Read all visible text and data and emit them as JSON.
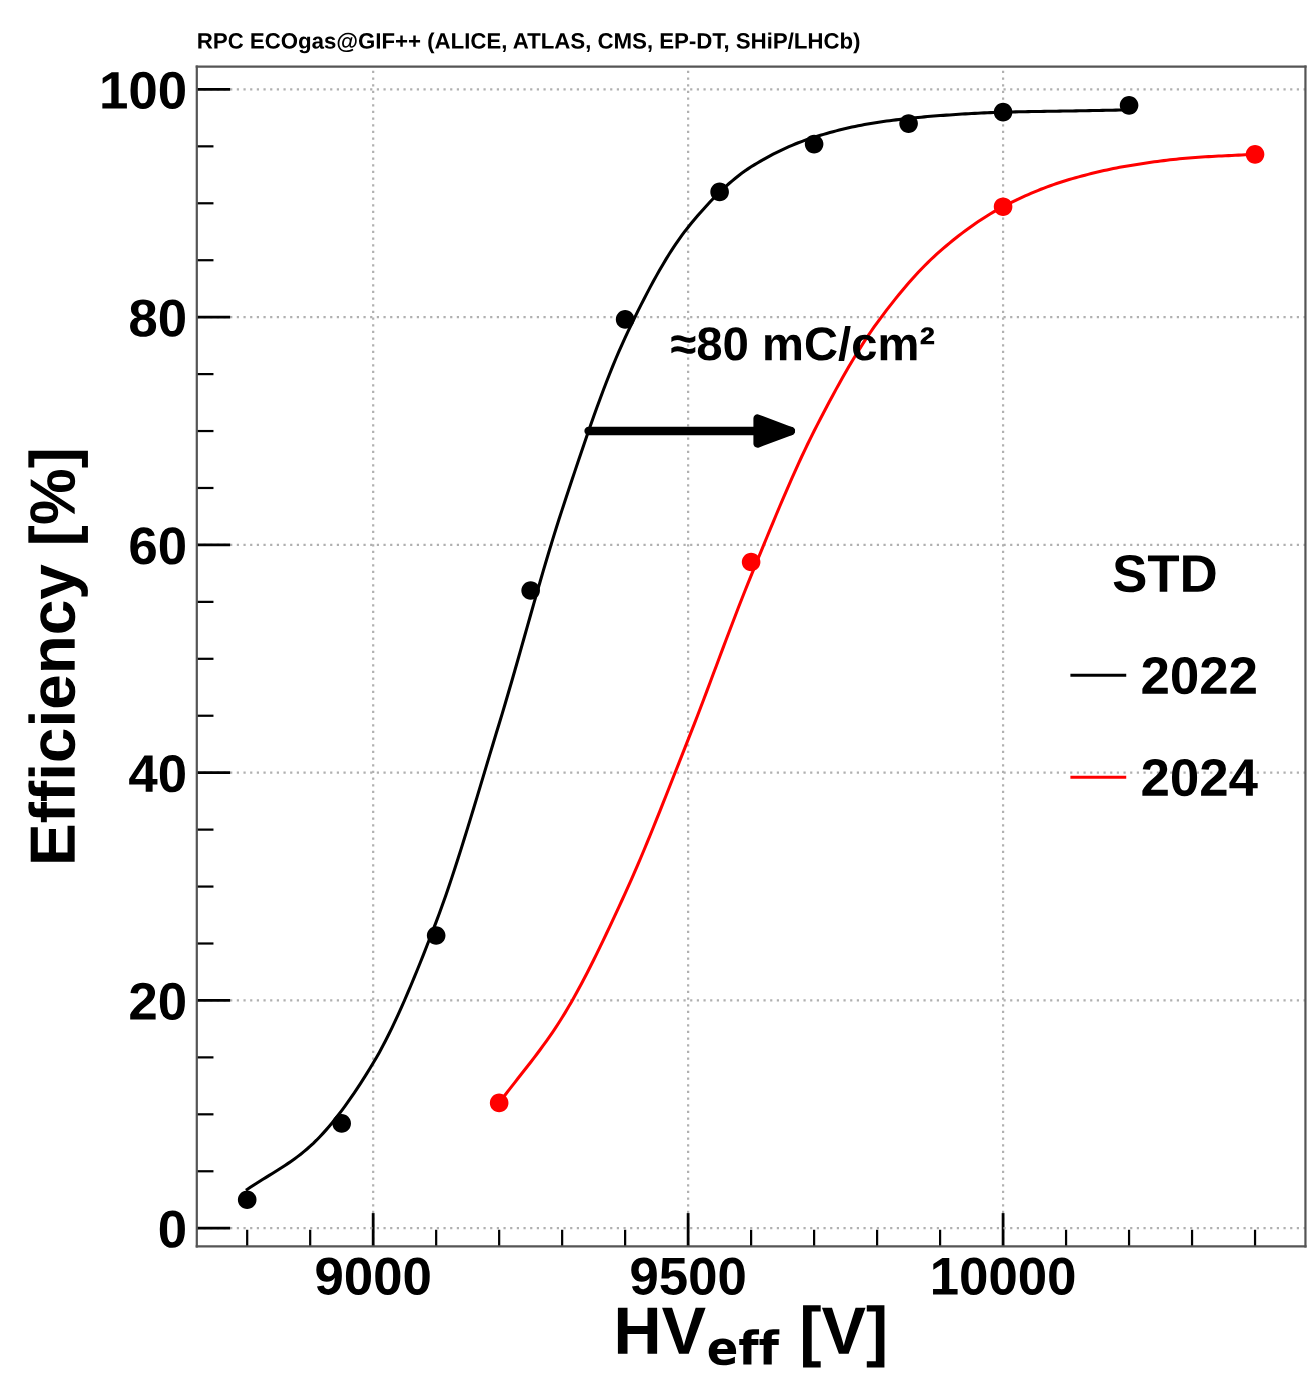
{
  "chart_data": {
    "type": "scatter",
    "title": "RPC ECOgas@GIF++ (ALICE, ATLAS, CMS, EP-DT, SHiP/LHCb)",
    "xlabel": "HV$_{eff}$ [V]",
    "ylabel": "Efficiency [%]",
    "legend_title": "STD",
    "legend": "right",
    "grid": true,
    "marker": "circle",
    "xlim": [
      8720,
      10480
    ],
    "ylim": [
      -1.6,
      102
    ],
    "xticks": [
      {
        "value": 8800,
        "label": null
      },
      {
        "value": 8900,
        "label": null
      },
      9000,
      {
        "value": 9100,
        "label": null
      },
      {
        "value": 9200,
        "label": null
      },
      {
        "value": 9300,
        "label": null
      },
      {
        "value": 9400,
        "label": null
      },
      9500,
      {
        "value": 9600,
        "label": null
      },
      {
        "value": 9700,
        "label": null
      },
      {
        "value": 9800,
        "label": null
      },
      {
        "value": 9900,
        "label": null
      },
      10000,
      {
        "value": 10100,
        "label": null
      },
      {
        "value": 10200,
        "label": null
      },
      {
        "value": 10300,
        "label": null
      },
      {
        "value": 10400,
        "label": null
      }
    ],
    "yticks": [
      0,
      {
        "value": 5,
        "label": null
      },
      {
        "value": 10,
        "label": null
      },
      {
        "value": 15,
        "label": null
      },
      20,
      {
        "value": 25,
        "label": null
      },
      {
        "value": 30,
        "label": null
      },
      {
        "value": 35,
        "label": null
      },
      40,
      {
        "value": 45,
        "label": null
      },
      {
        "value": 50,
        "label": null
      },
      {
        "value": 55,
        "label": null
      },
      60,
      {
        "value": 65,
        "label": null
      },
      {
        "value": 70,
        "label": null
      },
      {
        "value": 75,
        "label": null
      },
      80,
      {
        "value": 85,
        "label": null
      },
      {
        "value": 90,
        "label": null
      },
      {
        "value": 95,
        "label": null
      },
      100
    ],
    "series": [
      {
        "color": "#000000",
        "x": [
          8800,
          8950,
          9100,
          9250,
          9400,
          9550,
          9700,
          9850,
          10000,
          10200
        ],
        "values": [
          2.5,
          9.2,
          25.7,
          56,
          79.8,
          91,
          95.2,
          97,
          98,
          98.6
        ]
      },
      {
        "color": "#ff0000",
        "x": [
          9200,
          9600,
          10000,
          10400
        ],
        "values": [
          11,
          58.5,
          89.7,
          94.3
        ]
      },
      {
        "type": "line",
        "name": "2022",
        "color": "#000000",
        "marker": "none",
        "x": [
          8800,
          8900,
          9000,
          9100,
          9200,
          9300,
          9400,
          9500,
          9600,
          9700,
          9800,
          9900,
          10000,
          10100,
          10200
        ],
        "values": [
          3.4,
          7.2,
          14.5,
          26.9,
          44.3,
          63.1,
          78.2,
          87.9,
          93.2,
          95.8,
          97.1,
          97.7,
          98.0,
          98.1,
          98.2
        ]
      },
      {
        "type": "line",
        "name": "2024",
        "color": "#ff0000",
        "marker": "none",
        "x": [
          9200,
          9300,
          9400,
          9500,
          9600,
          9700,
          9800,
          9900,
          10000,
          10100,
          10200,
          10300,
          10400
        ],
        "values": [
          11.0,
          18.5,
          29.4,
          42.9,
          57.3,
          70.0,
          79.5,
          85.8,
          89.7,
          92.0,
          93.3,
          94.0,
          94.3
        ]
      }
    ],
    "annotations": [
      {
        "text": "≈80 mC/cm²",
        "x": 9682,
        "y": 70
      }
    ]
  }
}
